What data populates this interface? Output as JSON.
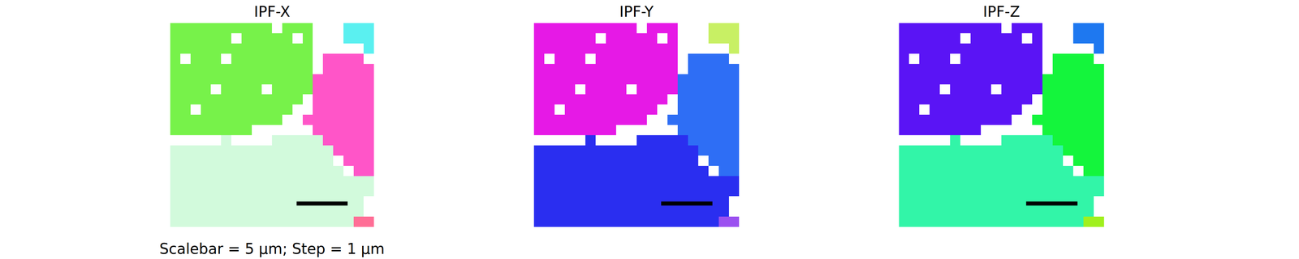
{
  "chart_data": [
    {
      "type": "heatmap",
      "title": "IPF-X",
      "colors": [
        "#77f24a",
        "#ff55c8",
        "#d2fadc",
        "#ff6e96",
        "#5af0f0"
      ],
      "xlim": [
        -0.5,
        19.5
      ],
      "ylim": [
        19.5,
        -0.5
      ],
      "tick_labels": false
    },
    {
      "type": "heatmap",
      "title": "IPF-Y",
      "colors": [
        "#e619e6",
        "#2e6ef5",
        "#2a2ef0",
        "#9b50f0",
        "#c8f064"
      ],
      "xlim": [
        -0.5,
        19.5
      ],
      "ylim": [
        19.5,
        -0.5
      ],
      "tick_labels": false
    },
    {
      "type": "heatmap",
      "title": "IPF-Z",
      "colors": [
        "#5a14f5",
        "#14f53c",
        "#32f5a8",
        "#a0f01e",
        "#1e78f0"
      ],
      "xlim": [
        -0.5,
        19.5
      ],
      "ylim": [
        19.5,
        -0.5
      ],
      "tick_labels": false
    }
  ],
  "cells": [
    [
      0,
      0,
      0,
      0,
      0,
      0,
      0,
      0,
      0,
      0,
      null,
      0,
      0,
      0,
      null,
      null,
      null,
      4,
      4,
      4
    ],
    [
      0,
      0,
      0,
      0,
      0,
      0,
      null,
      0,
      0,
      0,
      0,
      0,
      null,
      0,
      null,
      null,
      null,
      4,
      4,
      4
    ],
    [
      0,
      0,
      0,
      0,
      0,
      0,
      0,
      0,
      0,
      0,
      0,
      0,
      0,
      0,
      null,
      null,
      null,
      null,
      null,
      4
    ],
    [
      0,
      null,
      0,
      0,
      0,
      null,
      0,
      0,
      0,
      0,
      0,
      0,
      0,
      0,
      null,
      1,
      1,
      1,
      1,
      null
    ],
    [
      0,
      0,
      0,
      0,
      0,
      0,
      0,
      0,
      0,
      0,
      0,
      0,
      0,
      0,
      null,
      1,
      1,
      1,
      1,
      1
    ],
    [
      0,
      0,
      0,
      0,
      0,
      0,
      0,
      0,
      0,
      0,
      0,
      0,
      0,
      0,
      1,
      1,
      1,
      1,
      1,
      1
    ],
    [
      0,
      0,
      0,
      0,
      null,
      0,
      0,
      0,
      0,
      null,
      0,
      0,
      0,
      0,
      1,
      1,
      1,
      1,
      1,
      1
    ],
    [
      0,
      0,
      0,
      0,
      0,
      0,
      0,
      0,
      0,
      0,
      0,
      0,
      0,
      null,
      1,
      1,
      1,
      1,
      1,
      1
    ],
    [
      0,
      0,
      null,
      0,
      0,
      0,
      0,
      0,
      0,
      0,
      0,
      0,
      null,
      null,
      1,
      1,
      1,
      1,
      1,
      1
    ],
    [
      0,
      0,
      0,
      0,
      0,
      0,
      0,
      0,
      0,
      0,
      0,
      null,
      null,
      1,
      1,
      1,
      1,
      1,
      1,
      1
    ],
    [
      0,
      0,
      0,
      0,
      0,
      0,
      0,
      0,
      null,
      null,
      null,
      null,
      null,
      null,
      1,
      1,
      1,
      1,
      1,
      1
    ],
    [
      null,
      null,
      null,
      null,
      null,
      2,
      null,
      null,
      null,
      null,
      2,
      2,
      2,
      2,
      2,
      1,
      1,
      1,
      1,
      1
    ],
    [
      2,
      2,
      2,
      2,
      2,
      2,
      2,
      2,
      2,
      2,
      2,
      2,
      2,
      2,
      2,
      2,
      1,
      1,
      1,
      1
    ],
    [
      2,
      2,
      2,
      2,
      2,
      2,
      2,
      2,
      2,
      2,
      2,
      2,
      2,
      2,
      2,
      2,
      null,
      1,
      1,
      1
    ],
    [
      2,
      2,
      2,
      2,
      2,
      2,
      2,
      2,
      2,
      2,
      2,
      2,
      2,
      2,
      2,
      2,
      2,
      null,
      1,
      1
    ],
    [
      2,
      2,
      2,
      2,
      2,
      2,
      2,
      2,
      2,
      2,
      2,
      2,
      2,
      2,
      2,
      2,
      2,
      2,
      2,
      2
    ],
    [
      2,
      2,
      2,
      2,
      2,
      2,
      2,
      2,
      2,
      2,
      2,
      2,
      2,
      2,
      2,
      2,
      2,
      2,
      2,
      2
    ],
    [
      2,
      2,
      2,
      2,
      2,
      2,
      2,
      2,
      2,
      2,
      2,
      2,
      2,
      2,
      2,
      2,
      2,
      2,
      2,
      null
    ],
    [
      2,
      2,
      2,
      2,
      2,
      2,
      2,
      2,
      2,
      2,
      2,
      2,
      2,
      2,
      2,
      2,
      2,
      2,
      2,
      null
    ],
    [
      2,
      2,
      2,
      2,
      2,
      2,
      2,
      2,
      2,
      2,
      2,
      2,
      2,
      2,
      2,
      2,
      2,
      2,
      3,
      3
    ]
  ],
  "step_um": 1,
  "scalebar_um": 5,
  "caption": "Scalebar = 5 μm; Step = 1 μm"
}
